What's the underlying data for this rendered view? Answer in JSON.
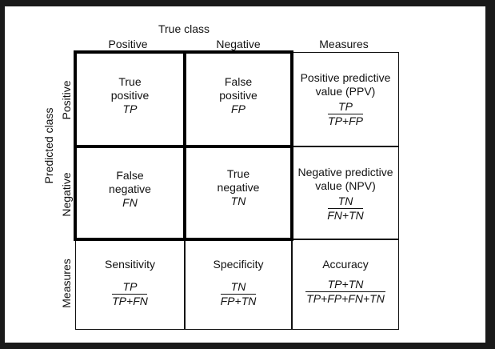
{
  "header": {
    "true_class": "True class",
    "positive": "Positive",
    "negative": "Negative",
    "measures": "Measures"
  },
  "side": {
    "predicted_class": "Predicted class",
    "positive": "Positive",
    "negative": "Negative",
    "measures": "Measures"
  },
  "cells": {
    "tp": {
      "line1": "True",
      "line2": "positive",
      "abbr": "TP"
    },
    "fp": {
      "line1": "False",
      "line2": "positive",
      "abbr": "FP"
    },
    "fn": {
      "line1": "False",
      "line2": "negative",
      "abbr": "FN"
    },
    "tn": {
      "line1": "True",
      "line2": "negative",
      "abbr": "TN"
    },
    "ppv": {
      "line1": "Positive predictive",
      "line2": "value (PPV)",
      "num": "TP",
      "den": "TP+FP"
    },
    "npv": {
      "line1": "Negative predictive",
      "line2": "value (NPV)",
      "num": "TN",
      "den": "FN+TN"
    },
    "sensitivity": {
      "label": "Sensitivity",
      "num": "TP",
      "den": "TP+FN"
    },
    "specificity": {
      "label": "Specificity",
      "num": "TN",
      "den": "FP+TN"
    },
    "accuracy": {
      "label": "Accuracy",
      "num": "TP+TN",
      "den": "TP+FP+FN+TN"
    }
  }
}
